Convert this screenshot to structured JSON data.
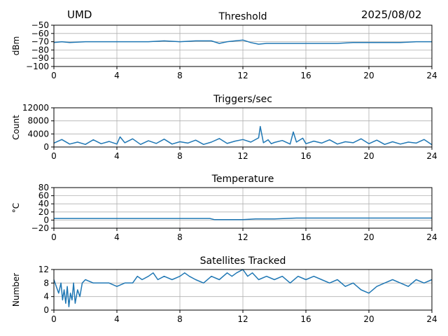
{
  "header": {
    "site": "UMD",
    "date": "2025/08/02"
  },
  "colors": {
    "series": "#1f77b4",
    "grid": "#b0b0b0",
    "axis": "#000000"
  },
  "chart_data": [
    {
      "type": "line",
      "title": "Threshold",
      "ylabel": "dBm",
      "xlim": [
        0,
        24
      ],
      "xticks": [
        0,
        4,
        8,
        12,
        16,
        20,
        24
      ],
      "ylim": [
        -100,
        -50
      ],
      "yticks": [
        -100,
        -90,
        -80,
        -70,
        -60,
        -50
      ],
      "ytick_labels": [
        "−100",
        "−90",
        "−80",
        "−70",
        "−60",
        "−50"
      ],
      "grid": true,
      "series": [
        {
          "x": [
            0,
            0.5,
            1,
            2,
            3,
            4,
            5,
            6,
            7,
            8,
            9,
            10,
            10.5,
            11,
            11.5,
            12,
            12.5,
            13,
            13.5,
            14,
            15,
            16,
            17,
            18,
            19,
            20,
            21,
            22,
            23,
            24
          ],
          "values": [
            -71,
            -70,
            -71,
            -70,
            -70,
            -70,
            -70,
            -70,
            -69,
            -70,
            -69,
            -69,
            -72,
            -70,
            -69,
            -68,
            -71,
            -73,
            -72,
            -72,
            -72,
            -72,
            -72,
            -72,
            -71,
            -71,
            -71,
            -71,
            -70,
            -70
          ]
        }
      ]
    },
    {
      "type": "line",
      "title": "Triggers/sec",
      "ylabel": "Count",
      "xlim": [
        0,
        24
      ],
      "xticks": [
        0,
        4,
        8,
        12,
        16,
        20,
        24
      ],
      "ylim": [
        0,
        12000
      ],
      "yticks": [
        0,
        4000,
        8000,
        12000
      ],
      "ytick_labels": [
        "0",
        "4000",
        "8000",
        "12000"
      ],
      "grid": true,
      "series": [
        {
          "x": [
            0,
            0.5,
            1,
            1.5,
            2,
            2.5,
            3,
            3.5,
            4,
            4.2,
            4.5,
            5,
            5.5,
            6,
            6.5,
            7,
            7.5,
            8,
            8.5,
            9,
            9.5,
            10,
            10.5,
            11,
            11.5,
            12,
            12.5,
            13,
            13.1,
            13.3,
            13.6,
            13.8,
            14,
            14.5,
            15,
            15.2,
            15.4,
            15.8,
            16,
            16.5,
            17,
            17.5,
            18,
            18.5,
            19,
            19.5,
            20,
            20.5,
            21,
            21.5,
            22,
            22.5,
            23,
            23.5,
            24
          ],
          "values": [
            1200,
            2300,
            900,
            1500,
            800,
            2200,
            1000,
            1700,
            900,
            3100,
            1300,
            2500,
            800,
            1900,
            1100,
            2400,
            900,
            1600,
            1200,
            2100,
            800,
            1500,
            2600,
            1100,
            1800,
            2300,
            1500,
            2800,
            6300,
            1300,
            2200,
            1000,
            1400,
            2000,
            900,
            4600,
            1500,
            2700,
            1000,
            1800,
            1200,
            2200,
            900,
            1600,
            1300,
            2500,
            1000,
            2100,
            800,
            1600,
            900,
            1500,
            1200,
            2300,
            700
          ]
        }
      ]
    },
    {
      "type": "line",
      "title": "Temperature",
      "ylabel": "°C",
      "xlim": [
        0,
        24
      ],
      "xticks": [
        0,
        4,
        8,
        12,
        16,
        20,
        24
      ],
      "ylim": [
        -20,
        80
      ],
      "yticks": [
        -20,
        0,
        20,
        40,
        60,
        80
      ],
      "ytick_labels": [
        "−20",
        "0",
        "20",
        "40",
        "60",
        "80"
      ],
      "grid": true,
      "series": [
        {
          "x": [
            0,
            4,
            8,
            9.9,
            10.2,
            12,
            12.8,
            14,
            15.4,
            16,
            20,
            24
          ],
          "values": [
            4,
            4,
            4,
            4,
            1,
            1,
            3,
            3,
            5,
            5,
            5,
            5
          ]
        }
      ]
    },
    {
      "type": "line",
      "title": "Satellites Tracked",
      "ylabel": "Number",
      "xlim": [
        0,
        24
      ],
      "xticks": [
        0,
        4,
        8,
        12,
        16,
        20,
        24
      ],
      "ylim": [
        0,
        12
      ],
      "yticks": [
        0,
        4,
        8,
        12
      ],
      "ytick_labels": [
        "0",
        "4",
        "8",
        "12"
      ],
      "grid": true,
      "series": [
        {
          "x": [
            0,
            0.15,
            0.3,
            0.45,
            0.55,
            0.65,
            0.75,
            0.85,
            0.95,
            1.05,
            1.15,
            1.25,
            1.35,
            1.5,
            1.65,
            1.8,
            2,
            2.5,
            3,
            3.5,
            4,
            4.5,
            5,
            5.3,
            5.6,
            6,
            6.3,
            6.6,
            7,
            7.5,
            8,
            8.3,
            8.6,
            9,
            9.5,
            10,
            10.5,
            11,
            11.3,
            11.6,
            12,
            12.3,
            12.6,
            13,
            13.5,
            14,
            14.5,
            15,
            15.5,
            16,
            16.5,
            17,
            17.5,
            18,
            18.5,
            19,
            19.5,
            20,
            20.5,
            21,
            21.5,
            22,
            22.5,
            23,
            23.5,
            24
          ],
          "values": [
            9,
            7,
            5,
            8,
            3,
            6,
            2,
            7,
            1,
            5,
            3,
            8,
            2,
            6,
            4,
            8,
            9,
            8,
            8,
            8,
            7,
            8,
            8,
            10,
            9,
            10,
            11,
            9,
            10,
            9,
            10,
            11,
            10,
            9,
            8,
            10,
            9,
            11,
            10,
            11,
            12,
            10,
            11,
            9,
            10,
            9,
            10,
            8,
            10,
            9,
            10,
            9,
            8,
            9,
            7,
            8,
            6,
            5,
            7,
            8,
            9,
            8,
            7,
            9,
            8,
            9
          ]
        }
      ]
    }
  ]
}
